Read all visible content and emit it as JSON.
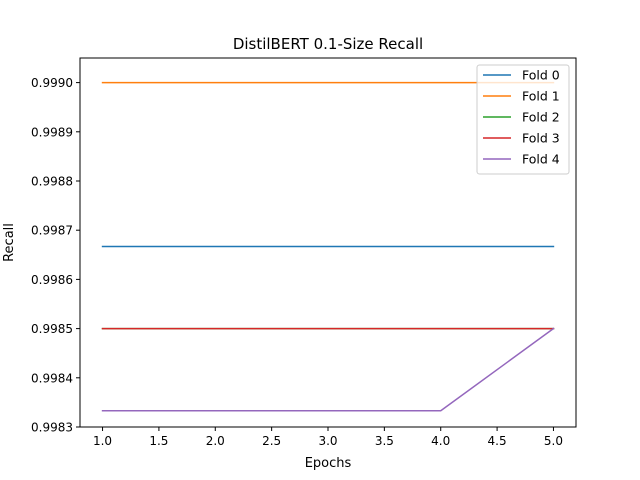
{
  "chart_data": {
    "type": "line",
    "title": "DistilBERT 0.1-Size Recall",
    "xlabel": "Epochs",
    "ylabel": "Recall",
    "xlim": [
      0.8,
      5.2
    ],
    "ylim": [
      0.9983,
      0.99905
    ],
    "x": [
      1,
      2,
      3,
      4,
      5
    ],
    "x_ticks": [
      "1.0",
      "1.5",
      "2.0",
      "2.5",
      "3.0",
      "3.5",
      "4.0",
      "4.5",
      "5.0"
    ],
    "y_ticks": [
      "0.9983",
      "0.9984",
      "0.9985",
      "0.9986",
      "0.9987",
      "0.9988",
      "0.9989",
      "0.9990"
    ],
    "grid": false,
    "legend_position": "top-right",
    "series": [
      {
        "name": "Fold 0",
        "color": "#1f77b4",
        "values": [
          0.998667,
          0.998667,
          0.998667,
          0.998667,
          0.998667
        ]
      },
      {
        "name": "Fold 1",
        "color": "#ff7f0e",
        "values": [
          0.999,
          0.999,
          0.999,
          0.999,
          0.999
        ]
      },
      {
        "name": "Fold 2",
        "color": "#2ca02c",
        "values": [
          0.9985,
          0.9985,
          0.9985,
          0.9985,
          0.9985
        ]
      },
      {
        "name": "Fold 3",
        "color": "#d62728",
        "values": [
          0.9985,
          0.9985,
          0.9985,
          0.9985,
          0.9985
        ]
      },
      {
        "name": "Fold 4",
        "color": "#9467bd",
        "values": [
          0.998333,
          0.998333,
          0.998333,
          0.998333,
          0.9985
        ]
      }
    ]
  }
}
